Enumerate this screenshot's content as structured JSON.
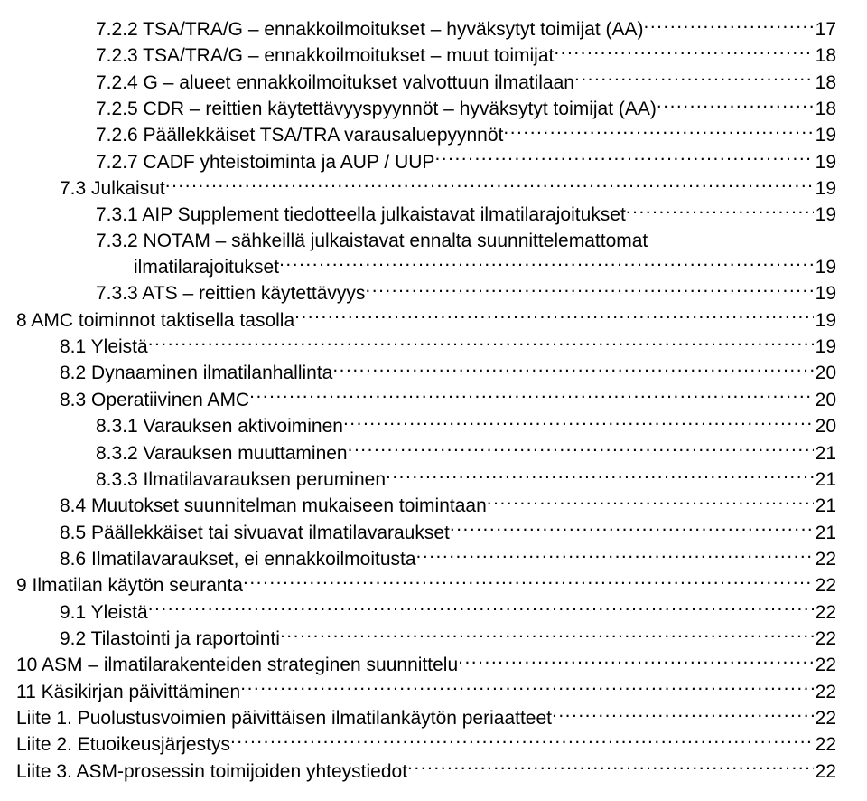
{
  "toc": [
    {
      "indent": 2,
      "label": "7.2.2 TSA/TRA/G – ennakkoilmoitukset – hyväksytyt toimijat (AA)",
      "page": "17",
      "lineonly": true
    },
    {
      "indent": 2,
      "label": "7.2.3 TSA/TRA/G – ennakkoilmoitukset – muut toimijat",
      "page": "18"
    },
    {
      "indent": 2,
      "label": "7.2.4 G – alueet ennakkoilmoitukset valvottuun ilmatilaan",
      "page": "18"
    },
    {
      "indent": 2,
      "label": "7.2.5 CDR – reittien käytettävyyspyynnöt – hyväksytyt toimijat (AA)",
      "page": "18"
    },
    {
      "indent": 2,
      "label": "7.2.6 Päällekkäiset TSA/TRA varausaluepyynnöt",
      "page": "19"
    },
    {
      "indent": 2,
      "label": "7.2.7 CADF yhteistoiminta ja AUP / UUP",
      "page": "19"
    },
    {
      "indent": 1,
      "label": "7.3   Julkaisut",
      "page": "19"
    },
    {
      "indent": 2,
      "label": "7.3.1 AIP Supplement tiedotteella julkaistavat ilmatilarajoitukset",
      "page": "19"
    },
    {
      "indent": 2,
      "label": "7.3.2 NOTAM – sähkeillä julkaistavat ennalta suunnittelemattomat",
      "cont": "ilmatilarajoitukset",
      "page": "19"
    },
    {
      "indent": 2,
      "label": "7.3.3 ATS – reittien käytettävyys",
      "page": "19"
    },
    {
      "indent": 0,
      "label": "8    AMC toiminnot taktisella tasolla",
      "page": "19"
    },
    {
      "indent": 1,
      "label": "8.1   Yleistä",
      "page": "19"
    },
    {
      "indent": 1,
      "label": "8.2   Dynaaminen ilmatilanhallinta",
      "page": "20"
    },
    {
      "indent": 1,
      "label": "8.3   Operatiivinen AMC",
      "page": "20"
    },
    {
      "indent": 2,
      "label": "8.3.1 Varauksen aktivoiminen",
      "page": "20"
    },
    {
      "indent": 2,
      "label": "8.3.2 Varauksen muuttaminen",
      "page": "21"
    },
    {
      "indent": 2,
      "label": "8.3.3 Ilmatilavarauksen peruminen",
      "page": "21"
    },
    {
      "indent": 1,
      "label": "8.4   Muutokset suunnitelman mukaiseen toimintaan",
      "page": "21"
    },
    {
      "indent": 1,
      "label": "8.5   Päällekkäiset tai sivuavat ilmatilavaraukset",
      "page": "21"
    },
    {
      "indent": 1,
      "label": "8.6   Ilmatilavaraukset, ei ennakkoilmoitusta",
      "page": "22"
    },
    {
      "indent": 0,
      "label": "9    Ilmatilan käytön seuranta",
      "page": "22"
    },
    {
      "indent": 1,
      "label": "9.1   Yleistä",
      "page": "22"
    },
    {
      "indent": 1,
      "label": "9.2   Tilastointi ja raportointi",
      "page": "22"
    },
    {
      "indent": 0,
      "label": "10   ASM – ilmatilarakenteiden strateginen suunnittelu",
      "page": "22"
    },
    {
      "indent": 0,
      "label": "11   Käsikirjan päivittäminen",
      "page": "22"
    },
    {
      "indent": 0,
      "label": "Liite 1. Puolustusvoimien päivittäisen ilmatilankäytön periaatteet",
      "page": "22"
    },
    {
      "indent": 0,
      "label": "Liite 2. Etuoikeusjärjestys",
      "page": "22"
    },
    {
      "indent": 0,
      "label": "Liite 3. ASM-prosessin toimijoiden yhteystiedot",
      "page": "22"
    }
  ]
}
